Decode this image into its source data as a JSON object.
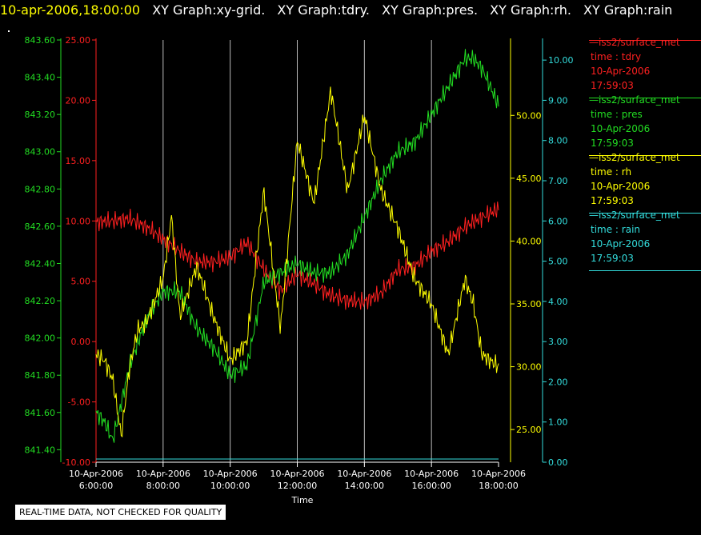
{
  "header": {
    "time": "10-apr-2006,18:00:00",
    "graphs": [
      "XY Graph:xy-grid.",
      "XY Graph:tdry.",
      "XY Graph:pres.",
      "XY Graph:rh.",
      "XY Graph:rain"
    ]
  },
  "legend": [
    {
      "source": "iss2/surface_met",
      "var": "time : tdry",
      "date": "10-Apr-2006",
      "time": "17:59:03",
      "color": "#ff2020"
    },
    {
      "source": "iss2/surface_met",
      "var": "time : pres",
      "date": "10-Apr-2006",
      "time": "17:59:03",
      "color": "#22dd22"
    },
    {
      "source": "iss2/surface_met",
      "var": "time : rh",
      "date": "10-Apr-2006",
      "time": "17:59:03",
      "color": "#ffff00"
    },
    {
      "source": "iss2/surface_met",
      "var": "time : rain",
      "date": "10-Apr-2006",
      "time": "17:59:03",
      "color": "#33dddd"
    }
  ],
  "disclaimer": "REAL-TIME DATA, NOT CHECKED FOR QUALITY",
  "chart_data": {
    "type": "line",
    "xlabel": "Time",
    "x_ticks": [
      {
        "d": "10-Apr-2006",
        "t": "6:00:00"
      },
      {
        "d": "10-Apr-2006",
        "t": "8:00:00"
      },
      {
        "d": "10-Apr-2006",
        "t": "10:00:00"
      },
      {
        "d": "10-Apr-2006",
        "t": "12:00:00"
      },
      {
        "d": "10-Apr-2006",
        "t": "14:00:00"
      },
      {
        "d": "10-Apr-2006",
        "t": "16:00:00"
      },
      {
        "d": "10-Apr-2006",
        "t": "18:00:00"
      }
    ],
    "xlim": [
      "2006-04-10 06:00:00",
      "2006-04-10 18:00:00"
    ],
    "grid": "vertical",
    "axes": {
      "pres": {
        "color": "#22dd22",
        "ticks": [
          "841.40",
          "841.60",
          "841.80",
          "842.00",
          "842.20",
          "842.40",
          "842.60",
          "842.80",
          "843.00",
          "843.20",
          "843.40",
          "843.60"
        ],
        "ylim": [
          841.35,
          843.6
        ]
      },
      "tdry": {
        "color": "#ff2020",
        "ticks": [
          "-10.00",
          "-5.00",
          "0.00",
          "5.00",
          "10.00",
          "15.00",
          "20.00",
          "25.00"
        ],
        "ylim": [
          -10,
          25
        ]
      },
      "rh": {
        "color": "#ffff00",
        "ticks": [
          "25.00",
          "30.00",
          "35.00",
          "40.00",
          "45.00",
          "50.00"
        ],
        "ylim": [
          22.4,
          56.0
        ]
      },
      "rain": {
        "color": "#33dddd",
        "ticks": [
          "0.00",
          "1.00",
          "2.00",
          "3.00",
          "4.00",
          "5.00",
          "6.00",
          "7.00",
          "8.00",
          "9.00",
          "10.00"
        ],
        "ylim": [
          0,
          10.5
        ]
      }
    },
    "series": [
      {
        "axis": "tdry",
        "x": [
          "06:00",
          "06:30",
          "07:00",
          "07:30",
          "08:00",
          "08:30",
          "09:00",
          "09:30",
          "10:00",
          "10:30",
          "11:00",
          "11:30",
          "12:00",
          "12:30",
          "13:00",
          "13:30",
          "14:00",
          "14:30",
          "15:00",
          "15:30",
          "16:00",
          "16:30",
          "17:00",
          "17:30",
          "18:00"
        ],
        "y": [
          9.9,
          10.0,
          10.2,
          9.5,
          8.5,
          7.5,
          6.6,
          6.6,
          7.0,
          8.2,
          6.0,
          4.2,
          5.6,
          4.8,
          3.8,
          3.4,
          3.3,
          4.0,
          6.0,
          6.2,
          7.5,
          8.3,
          9.5,
          10.3,
          11.0
        ]
      },
      {
        "axis": "pres",
        "x": [
          "06:00",
          "06:15",
          "06:30",
          "06:45",
          "07:00",
          "07:30",
          "08:00",
          "08:30",
          "09:00",
          "09:30",
          "10:00",
          "10:30",
          "11:00",
          "11:30",
          "12:00",
          "12:30",
          "13:00",
          "13:30",
          "14:00",
          "14:30",
          "15:00",
          "15:30",
          "16:00",
          "16:30",
          "17:00",
          "17:15",
          "17:30",
          "17:45",
          "18:00"
        ],
        "y": [
          841.6,
          841.55,
          841.45,
          841.65,
          841.85,
          842.1,
          842.25,
          842.25,
          842.05,
          841.95,
          841.8,
          841.85,
          842.3,
          842.35,
          842.4,
          842.35,
          842.35,
          842.45,
          842.65,
          842.85,
          843.0,
          843.05,
          843.2,
          843.35,
          843.5,
          843.5,
          843.45,
          843.35,
          843.25
        ]
      },
      {
        "axis": "rh",
        "x": [
          "06:00",
          "06:15",
          "06:30",
          "06:45",
          "07:00",
          "07:15",
          "07:30",
          "08:00",
          "08:15",
          "08:30",
          "09:00",
          "09:30",
          "10:00",
          "10:30",
          "11:00",
          "11:30",
          "12:00",
          "12:30",
          "13:00",
          "13:30",
          "14:00",
          "14:30",
          "15:00",
          "15:30",
          "16:00",
          "16:30",
          "17:00",
          "17:15",
          "17:30",
          "18:00"
        ],
        "y": [
          31,
          30.5,
          29,
          24.5,
          30,
          33,
          33.5,
          37,
          42,
          34,
          38,
          34,
          30.5,
          32,
          44,
          33,
          48,
          43,
          52,
          44,
          50,
          44,
          41,
          37,
          35,
          31,
          37,
          35,
          31,
          30
        ]
      },
      {
        "axis": "rain",
        "x": [
          "06:00",
          "18:00"
        ],
        "y": [
          0,
          0
        ]
      }
    ]
  }
}
